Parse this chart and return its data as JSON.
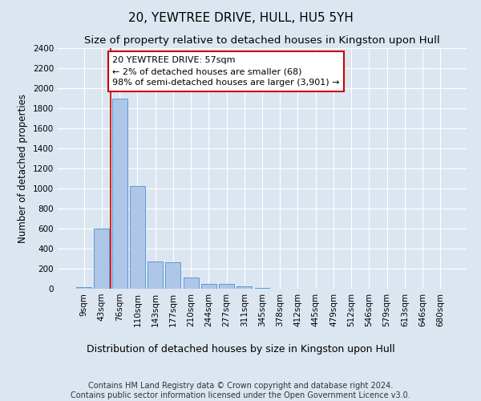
{
  "title1": "20, YEWTREE DRIVE, HULL, HU5 5YH",
  "title2": "Size of property relative to detached houses in Kingston upon Hull",
  "xlabel": "Distribution of detached houses by size in Kingston upon Hull",
  "ylabel": "Number of detached properties",
  "bins": [
    "9sqm",
    "43sqm",
    "76sqm",
    "110sqm",
    "143sqm",
    "177sqm",
    "210sqm",
    "244sqm",
    "277sqm",
    "311sqm",
    "345sqm",
    "378sqm",
    "412sqm",
    "445sqm",
    "479sqm",
    "512sqm",
    "546sqm",
    "579sqm",
    "613sqm",
    "646sqm",
    "680sqm"
  ],
  "bar_values": [
    20,
    600,
    1900,
    1025,
    275,
    265,
    110,
    50,
    45,
    25,
    5,
    0,
    0,
    0,
    0,
    0,
    0,
    0,
    0,
    0,
    0
  ],
  "bar_color": "#aec6e8",
  "bar_edgecolor": "#5b9bd5",
  "bg_color": "#dce6f1",
  "grid_color": "#ffffff",
  "annotation_line1": "20 YEWTREE DRIVE: 57sqm",
  "annotation_line2": "← 2% of detached houses are smaller (68)",
  "annotation_line3": "98% of semi-detached houses are larger (3,901) →",
  "annotation_box_color": "#ffffff",
  "annotation_box_edgecolor": "#cc0000",
  "vline_x": 1.5,
  "vline_color": "#cc0000",
  "ylim": [
    0,
    2400
  ],
  "yticks": [
    0,
    200,
    400,
    600,
    800,
    1000,
    1200,
    1400,
    1600,
    1800,
    2000,
    2200,
    2400
  ],
  "footer1": "Contains HM Land Registry data © Crown copyright and database right 2024.",
  "footer2": "Contains public sector information licensed under the Open Government Licence v3.0.",
  "title1_fontsize": 11,
  "title2_fontsize": 9.5,
  "xlabel_fontsize": 9,
  "ylabel_fontsize": 8.5,
  "tick_fontsize": 7.5,
  "annotation_fontsize": 8,
  "footer_fontsize": 7
}
